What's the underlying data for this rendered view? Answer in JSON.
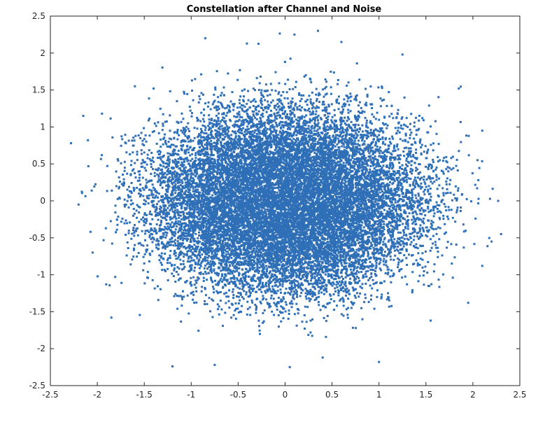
{
  "chart_data": {
    "type": "scatter",
    "title": "Constellation after Channel and Noise",
    "xlabel": "",
    "ylabel": "",
    "xlim": [
      -2.5,
      2.5
    ],
    "ylim": [
      -2.5,
      2.5
    ],
    "xticks": [
      -2.5,
      -2,
      -1.5,
      -1,
      -0.5,
      0,
      0.5,
      1,
      1.5,
      2,
      2.5
    ],
    "yticks": [
      -2.5,
      -2,
      -1.5,
      -1,
      -0.5,
      0,
      0.5,
      1,
      1.5,
      2,
      2.5
    ],
    "xtick_labels": [
      "-2.5",
      "-2",
      "-1.5",
      "-1",
      "-0.5",
      "0",
      "0.5",
      "1",
      "1.5",
      "2",
      "2.5"
    ],
    "ytick_labels": [
      "-2.5",
      "-2",
      "-1.5",
      "-1",
      "-0.5",
      "0",
      "0.5",
      "1",
      "1.5",
      "2",
      "2.5"
    ],
    "grid": false,
    "marker_color": "#2e6fb7",
    "point_cloud": {
      "distribution": "noisy-circular-constellation",
      "center": [
        0,
        0
      ],
      "ring_radius": 1.0,
      "noise_std": 0.36,
      "x_stretch": 1.15,
      "count": 16000
    },
    "outlier_points": [
      [
        -2.28,
        0.78
      ],
      [
        -2.2,
        -0.05
      ],
      [
        -2.15,
        1.15
      ],
      [
        -2.1,
        0.82
      ],
      [
        -2.05,
        -0.7
      ],
      [
        -1.85,
        -1.58
      ],
      [
        -1.6,
        1.55
      ],
      [
        -1.2,
        -2.24
      ],
      [
        -0.85,
        2.2
      ],
      [
        -0.75,
        -2.22
      ],
      [
        0.1,
        2.25
      ],
      [
        0.35,
        2.3
      ],
      [
        0.6,
        2.15
      ],
      [
        0.05,
        -2.25
      ],
      [
        0.4,
        -2.12
      ],
      [
        1.0,
        -2.18
      ],
      [
        1.25,
        1.98
      ],
      [
        1.85,
        1.52
      ],
      [
        2.1,
        0.95
      ],
      [
        2.2,
        -0.55
      ],
      [
        2.27,
        0.0
      ],
      [
        2.3,
        -0.45
      ],
      [
        2.1,
        -0.88
      ],
      [
        1.95,
        -1.38
      ],
      [
        1.55,
        -1.62
      ],
      [
        -1.4,
        1.52
      ],
      [
        -1.95,
        1.18
      ],
      [
        2.05,
        0.55
      ]
    ]
  }
}
